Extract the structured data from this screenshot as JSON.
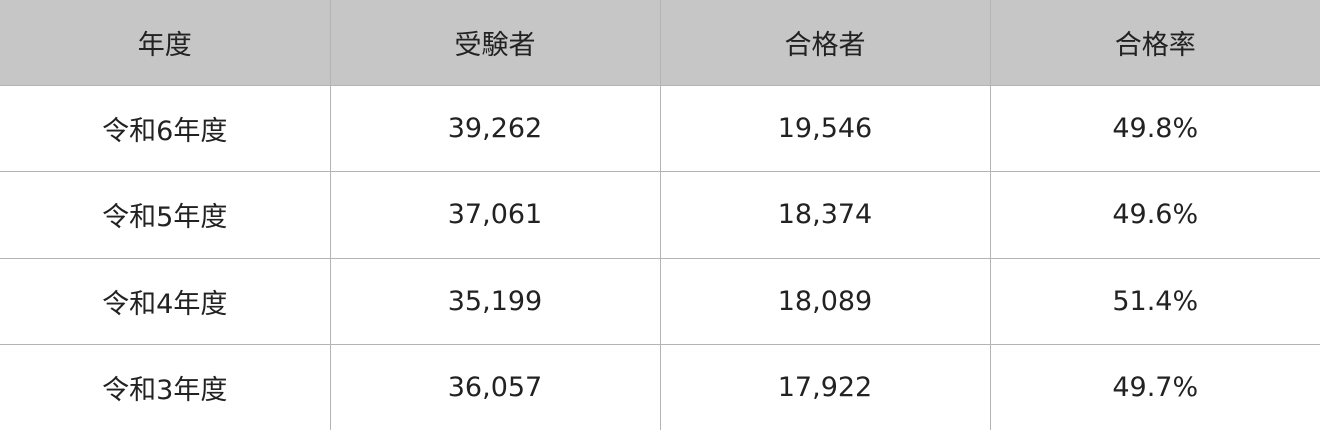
{
  "table": {
    "headers": [
      "年度",
      "受験者",
      "合格者",
      "合格率"
    ],
    "rows": [
      [
        "令和6年度",
        "39,262",
        "19,546",
        "49.8%"
      ],
      [
        "令和5年度",
        "37,061",
        "18,374",
        "49.6%"
      ],
      [
        "令和4年度",
        "35,199",
        "18,089",
        "51.4%"
      ],
      [
        "令和3年度",
        "36,057",
        "17,922",
        "49.7%"
      ]
    ]
  },
  "colors": {
    "header_bg": "#c6c6c6",
    "border": "#b4b4b4"
  }
}
